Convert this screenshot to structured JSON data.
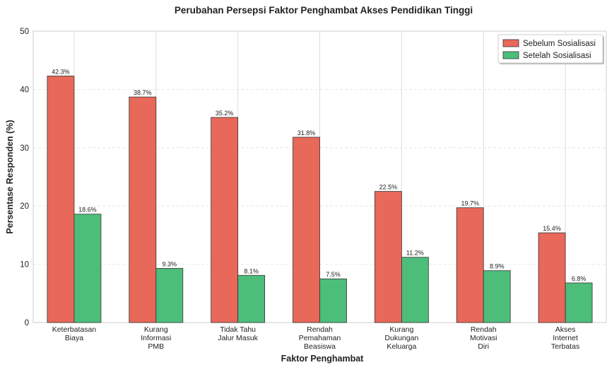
{
  "chart_data": {
    "type": "bar",
    "title": "Perubahan Persepsi Faktor Penghambat Akses Pendidikan Tinggi",
    "xlabel": "Faktor Penghambat",
    "ylabel": "Persentase Responden (%)",
    "ylim": [
      0,
      50
    ],
    "yticks": [
      "0",
      "10",
      "20",
      "30",
      "40",
      "50"
    ],
    "grid": true,
    "legend_position": "top-right",
    "categories": [
      [
        "Keterbatasan",
        "Biaya"
      ],
      [
        "Kurang",
        "Informasi",
        "PMB"
      ],
      [
        "Tidak Tahu",
        "Jalur Masuk"
      ],
      [
        "Rendah",
        "Pemahaman",
        "Beasiswa"
      ],
      [
        "Kurang",
        "Dukungan",
        "Keluarga"
      ],
      [
        "Rendah",
        "Motivasi",
        "Diri"
      ],
      [
        "Akses",
        "Internet",
        "Terbatas"
      ]
    ],
    "series": [
      {
        "name": "Sebelum Sosialisasi",
        "color": "#e8685a",
        "values": [
          42.3,
          38.7,
          35.2,
          31.8,
          22.5,
          19.7,
          15.4
        ],
        "labels": [
          "42.3%",
          "38.7%",
          "35.2%",
          "31.8%",
          "22.5%",
          "19.7%",
          "15.4%"
        ]
      },
      {
        "name": "Setelah Sosialisasi",
        "color": "#4dbd7a",
        "values": [
          18.6,
          9.3,
          8.1,
          7.5,
          11.2,
          8.9,
          6.8
        ],
        "labels": [
          "18.6%",
          "9.3%",
          "8.1%",
          "7.5%",
          "11.2%",
          "8.9%",
          "6.8%"
        ]
      }
    ]
  }
}
